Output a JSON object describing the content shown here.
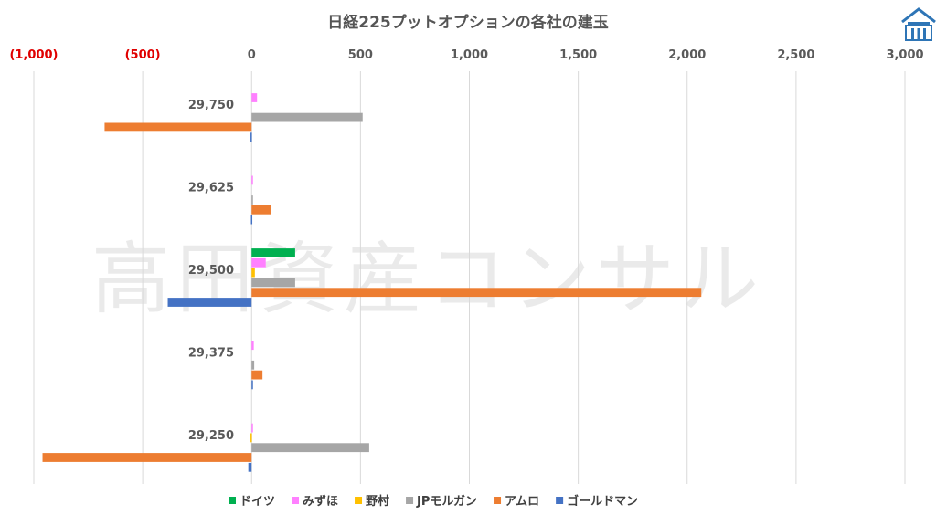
{
  "chart_data": {
    "type": "bar",
    "orientation": "horizontal",
    "title": "日経225プットオプションの各社の建玉",
    "categories": [
      "29,750",
      "29,625",
      "29,500",
      "29,375",
      "29,250"
    ],
    "xlim": [
      -1000,
      3000
    ],
    "xticks": [
      -1000,
      -500,
      0,
      500,
      1000,
      1500,
      2000,
      2500,
      3000
    ],
    "xtick_labels": [
      "(1,000)",
      "(500)",
      "0",
      "500",
      "1,000",
      "1,500",
      "2,000",
      "2,500",
      "3,000"
    ],
    "grid": true,
    "legend_position": "bottom",
    "series": [
      {
        "name": "ドイツ",
        "color": "#00b050",
        "values": [
          0,
          0,
          200,
          0,
          0
        ]
      },
      {
        "name": "みずほ",
        "color": "#ff80ff",
        "values": [
          25,
          3,
          65,
          10,
          5
        ]
      },
      {
        "name": "野村",
        "color": "#ffc000",
        "values": [
          0,
          0,
          15,
          0,
          -5
        ]
      },
      {
        "name": "JPモルガン",
        "color": "#a6a6a6",
        "values": [
          510,
          3,
          200,
          12,
          540
        ]
      },
      {
        "name": "アムロ",
        "color": "#ed7d31",
        "values": [
          -675,
          90,
          2065,
          50,
          -960
        ]
      },
      {
        "name": "ゴールドマン",
        "color": "#4472c4",
        "values": [
          -5,
          -3,
          -385,
          5,
          -15
        ]
      }
    ]
  },
  "watermark": "高田資産コンサル"
}
